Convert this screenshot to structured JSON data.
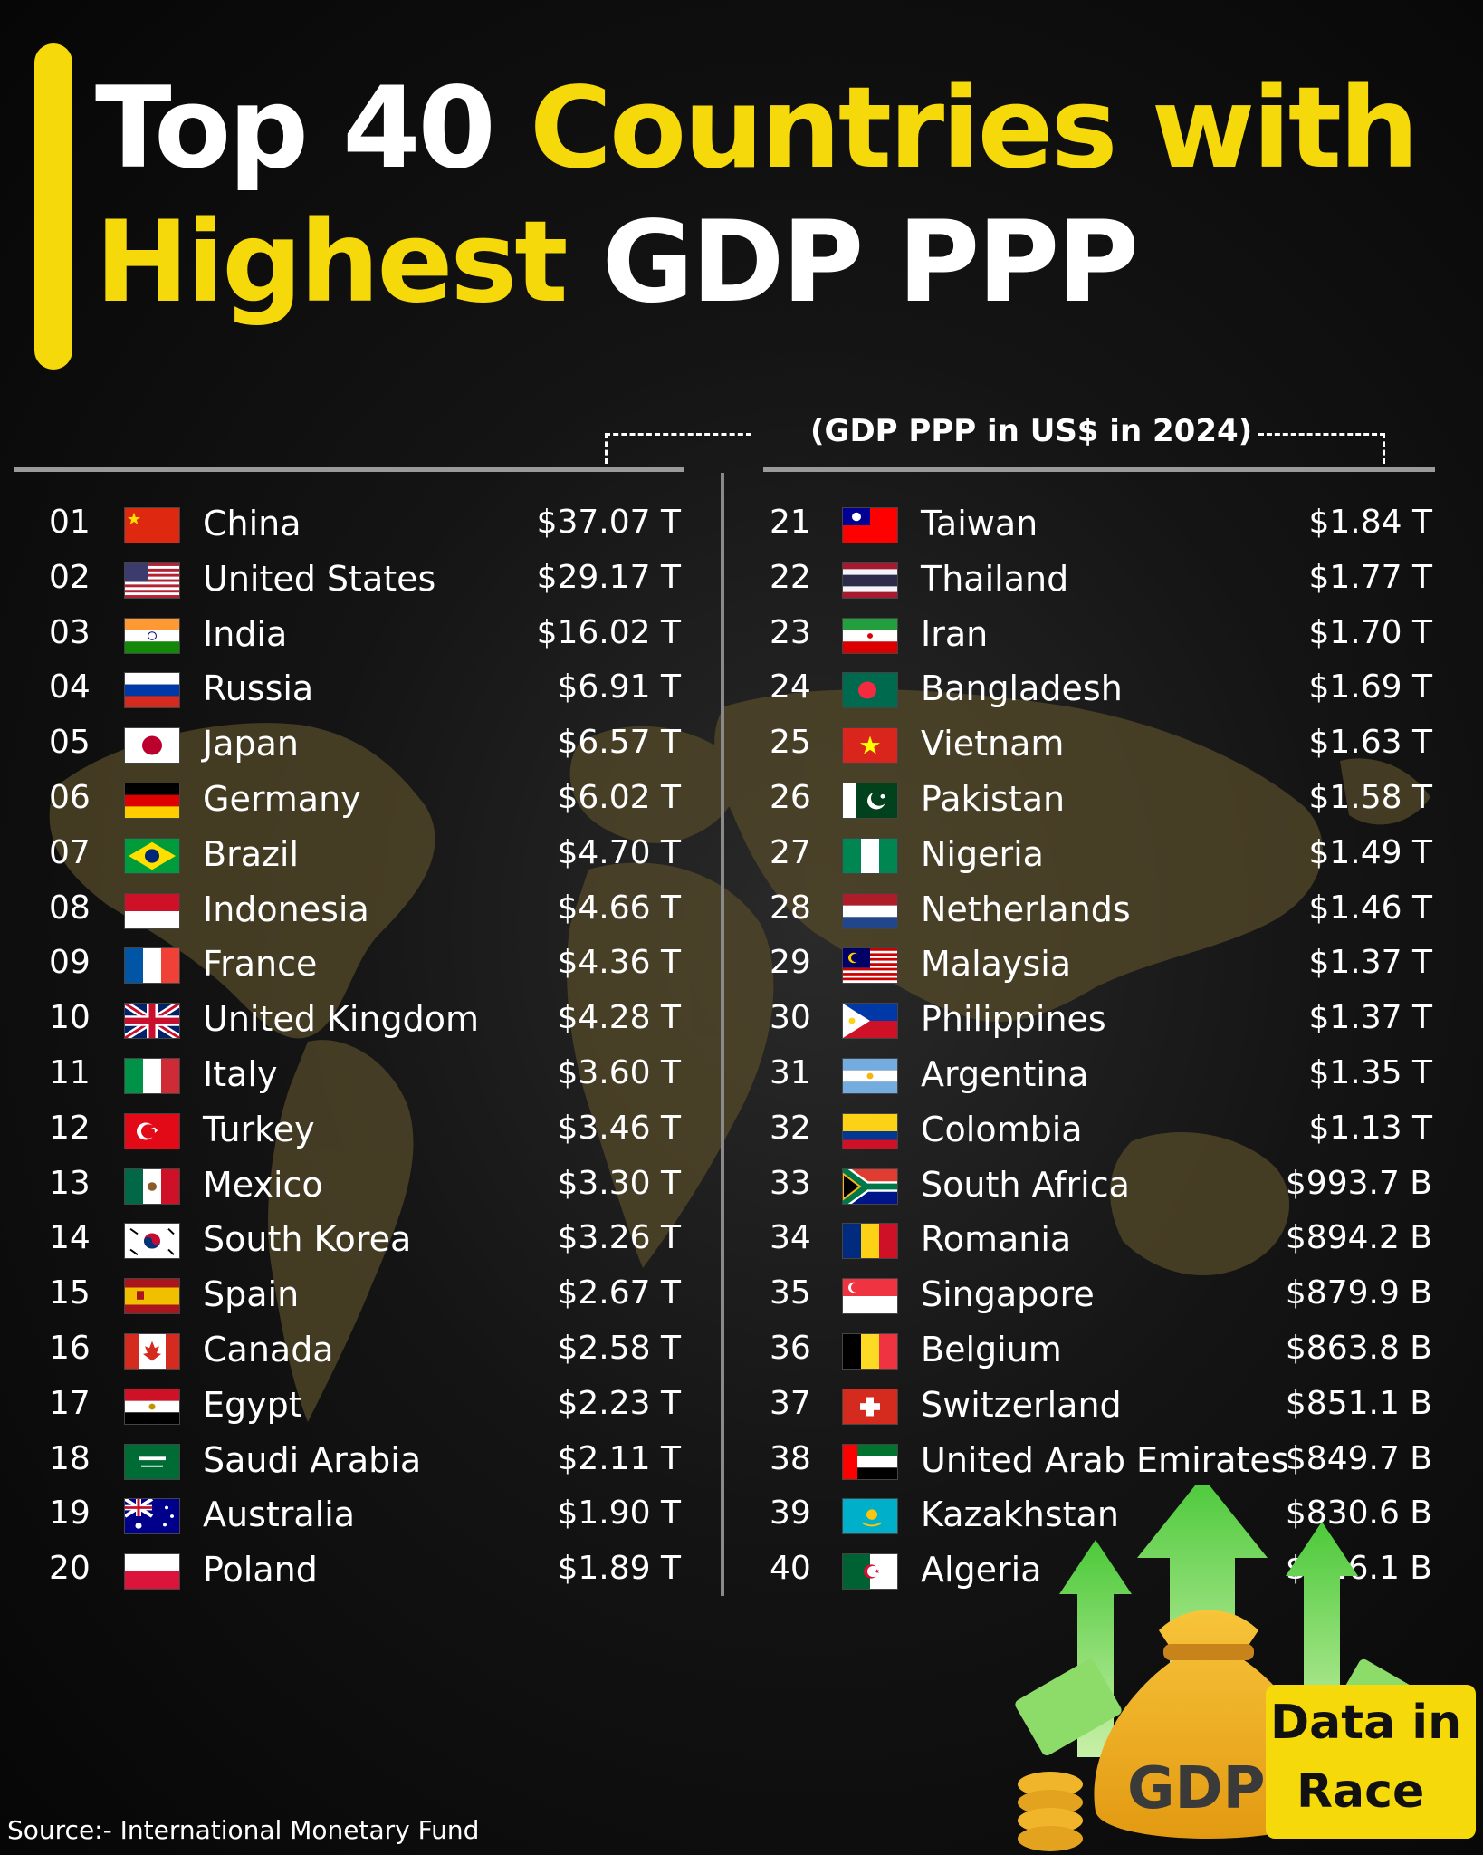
{
  "header": {
    "title_line1_a": "Top 40 ",
    "title_line1_b": "Countries with",
    "title_line2_a": "Highest ",
    "title_line2_b": "GDP PPP",
    "subtitle": "(GDP PPP in US$ in 2024)"
  },
  "rows_left": [
    {
      "rank": "01",
      "country": "China",
      "value": "$37.07 T",
      "flag": "china-flag"
    },
    {
      "rank": "02",
      "country": "United States",
      "value": "$29.17 T",
      "flag": "us-flag"
    },
    {
      "rank": "03",
      "country": "India",
      "value": "$16.02 T",
      "flag": "india-flag"
    },
    {
      "rank": "04",
      "country": "Russia",
      "value": "$6.91 T",
      "flag": "russia-flag"
    },
    {
      "rank": "05",
      "country": "Japan",
      "value": "$6.57 T",
      "flag": "japan-flag"
    },
    {
      "rank": "06",
      "country": "Germany",
      "value": "$6.02 T",
      "flag": "germany-flag"
    },
    {
      "rank": "07",
      "country": "Brazil",
      "value": "$4.70 T",
      "flag": "brazil-flag"
    },
    {
      "rank": "08",
      "country": "Indonesia",
      "value": "$4.66 T",
      "flag": "indonesia-flag"
    },
    {
      "rank": "09",
      "country": "France",
      "value": "$4.36 T",
      "flag": "france-flag"
    },
    {
      "rank": "10",
      "country": "United Kingdom",
      "value": "$4.28 T",
      "flag": "uk-flag"
    },
    {
      "rank": "11",
      "country": "Italy",
      "value": "$3.60 T",
      "flag": "italy-flag"
    },
    {
      "rank": "12",
      "country": "Turkey",
      "value": "$3.46 T",
      "flag": "turkey-flag"
    },
    {
      "rank": "13",
      "country": "Mexico",
      "value": "$3.30 T",
      "flag": "mexico-flag"
    },
    {
      "rank": "14",
      "country": "South Korea",
      "value": "$3.26 T",
      "flag": "south-korea-flag"
    },
    {
      "rank": "15",
      "country": "Spain",
      "value": "$2.67 T",
      "flag": "spain-flag"
    },
    {
      "rank": "16",
      "country": "Canada",
      "value": "$2.58 T",
      "flag": "canada-flag"
    },
    {
      "rank": "17",
      "country": "Egypt",
      "value": "$2.23 T",
      "flag": "egypt-flag"
    },
    {
      "rank": "18",
      "country": "Saudi Arabia",
      "value": "$2.11 T",
      "flag": "saudi-arabia-flag"
    },
    {
      "rank": "19",
      "country": "Australia",
      "value": "$1.90 T",
      "flag": "australia-flag"
    },
    {
      "rank": "20",
      "country": "Poland",
      "value": "$1.89 T",
      "flag": "poland-flag"
    }
  ],
  "rows_right": [
    {
      "rank": "21",
      "country": "Taiwan",
      "value": "$1.84 T",
      "flag": "taiwan-flag"
    },
    {
      "rank": "22",
      "country": "Thailand",
      "value": "$1.77 T",
      "flag": "thailand-flag"
    },
    {
      "rank": "23",
      "country": "Iran",
      "value": "$1.70 T",
      "flag": "iran-flag"
    },
    {
      "rank": "24",
      "country": "Bangladesh",
      "value": "$1.69 T",
      "flag": "bangladesh-flag"
    },
    {
      "rank": "25",
      "country": "Vietnam",
      "value": "$1.63 T",
      "flag": "vietnam-flag"
    },
    {
      "rank": "26",
      "country": "Pakistan",
      "value": "$1.58 T",
      "flag": "pakistan-flag"
    },
    {
      "rank": "27",
      "country": "Nigeria",
      "value": "$1.49 T",
      "flag": "nigeria-flag"
    },
    {
      "rank": "28",
      "country": "Netherlands",
      "value": "$1.46 T",
      "flag": "netherlands-flag"
    },
    {
      "rank": "29",
      "country": "Malaysia",
      "value": "$1.37 T",
      "flag": "malaysia-flag"
    },
    {
      "rank": "30",
      "country": "Philippines",
      "value": "$1.37 T",
      "flag": "philippines-flag"
    },
    {
      "rank": "31",
      "country": "Argentina",
      "value": "$1.35 T",
      "flag": "argentina-flag"
    },
    {
      "rank": "32",
      "country": "Colombia",
      "value": "$1.13 T",
      "flag": "colombia-flag"
    },
    {
      "rank": "33",
      "country": "South Africa",
      "value": "$993.7 B",
      "flag": "south-africa-flag"
    },
    {
      "rank": "34",
      "country": "Romania",
      "value": "$894.2 B",
      "flag": "romania-flag"
    },
    {
      "rank": "35",
      "country": "Singapore",
      "value": "$879.9 B",
      "flag": "singapore-flag"
    },
    {
      "rank": "36",
      "country": "Belgium",
      "value": "$863.8 B",
      "flag": "belgium-flag"
    },
    {
      "rank": "37",
      "country": "Switzerland",
      "value": "$851.1 B",
      "flag": "switzerland-flag"
    },
    {
      "rank": "38",
      "country": "United Arab Emirates",
      "value": "$849.7 B",
      "flag": "uae-flag"
    },
    {
      "rank": "39",
      "country": "Kazakhstan",
      "value": "$830.6 B",
      "flag": "kazakhstan-flag"
    },
    {
      "rank": "40",
      "country": "Algeria",
      "value": "$826.1 B",
      "flag": "algeria-flag"
    }
  ],
  "footer": {
    "source": "Source:-  International Monetary Fund"
  },
  "logo": {
    "gdp": "GDP",
    "data": "Data in",
    "race": "Race"
  },
  "colors": {
    "accent": "#f5d90a",
    "background": "#0b0b0b",
    "map": "#5a4f2a"
  }
}
